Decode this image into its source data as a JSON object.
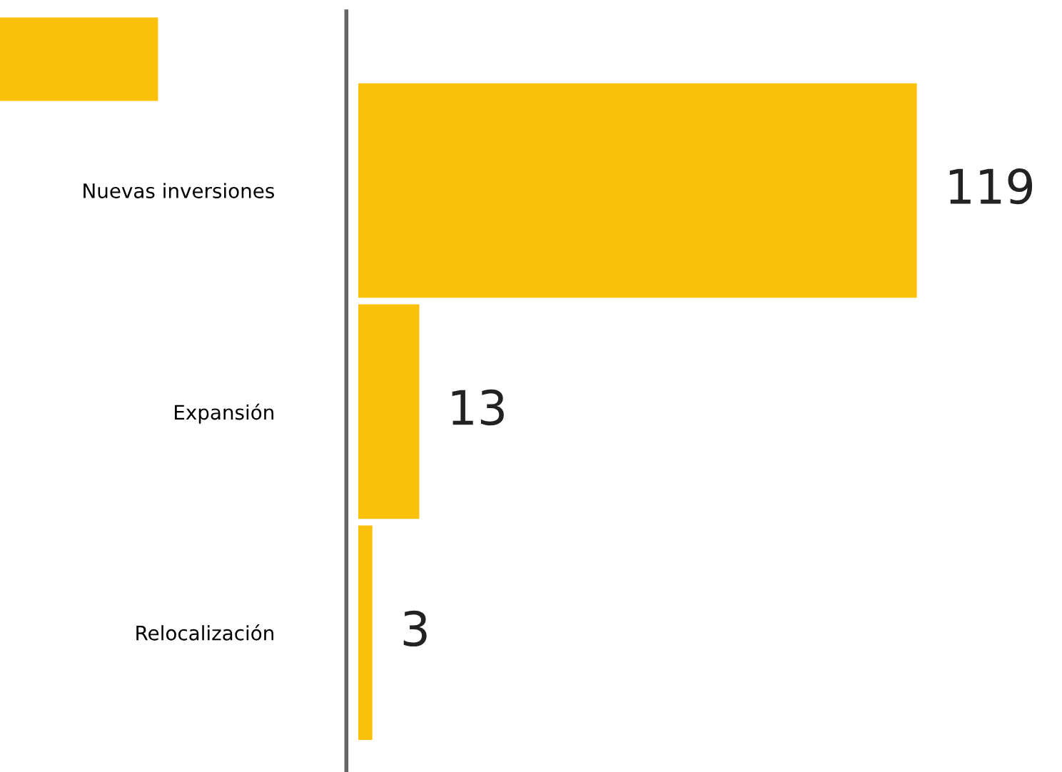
{
  "chart_data": {
    "type": "bar",
    "orientation": "horizontal",
    "categories": [
      "Nuevas inversiones",
      "Expansión",
      "Relocalización"
    ],
    "values": [
      119,
      13,
      3
    ],
    "color": "#fbc108",
    "data_labels": true,
    "grid": false,
    "legend": false
  }
}
